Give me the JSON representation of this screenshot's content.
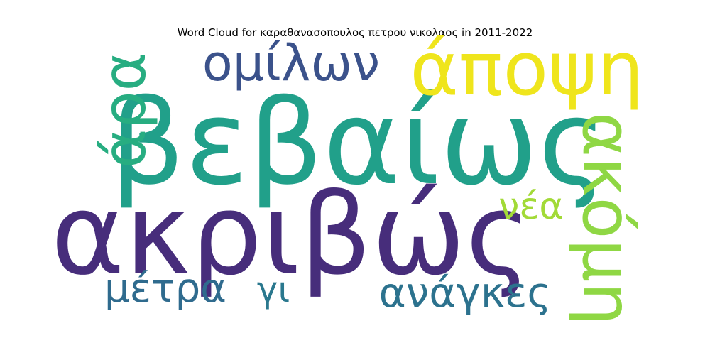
{
  "chart_data": {
    "type": "wordcloud",
    "title": "Word Cloud for καραθανασοπουλος πετρου νικολαος in 2011-2022",
    "words": [
      {
        "text": "βεβαίως",
        "weight": 1.0,
        "color": "#21a08a",
        "rotate": false
      },
      {
        "text": "ακριβώς",
        "weight": 0.97,
        "color": "#472d7b",
        "rotate": false
      },
      {
        "text": "άποψη",
        "weight": 0.66,
        "color": "#efe51c",
        "rotate": false
      },
      {
        "text": "ακόμη",
        "weight": 0.62,
        "color": "#8fd744",
        "rotate": true
      },
      {
        "text": "άρα",
        "weight": 0.52,
        "color": "#27ad81",
        "rotate": true
      },
      {
        "text": "ομίλων",
        "weight": 0.45,
        "color": "#3b528b",
        "rotate": false
      },
      {
        "text": "ανάγκες",
        "weight": 0.38,
        "color": "#2c728e",
        "rotate": false
      },
      {
        "text": "μέτρα",
        "weight": 0.36,
        "color": "#2f6b8e",
        "rotate": false
      },
      {
        "text": "νέα",
        "weight": 0.33,
        "color": "#a2da37",
        "rotate": false
      },
      {
        "text": "γι",
        "weight": 0.32,
        "color": "#2a788e",
        "rotate": false
      }
    ]
  }
}
